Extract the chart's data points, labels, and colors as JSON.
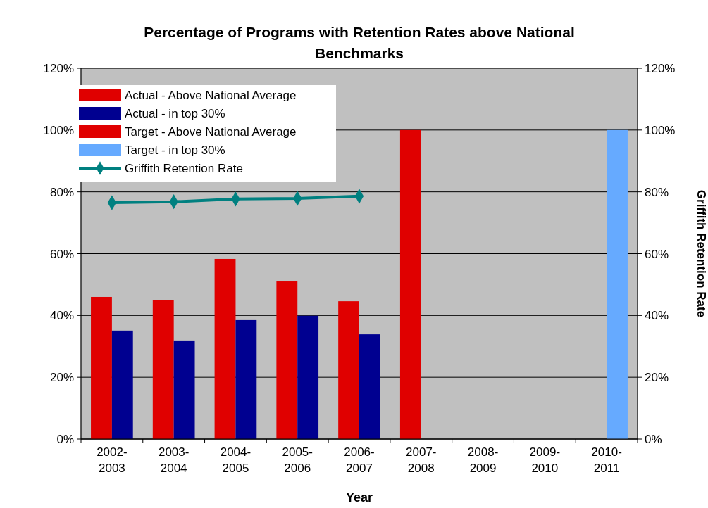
{
  "chart_data": {
    "type": "bar",
    "title": "Percentage of Programs with Retention Rates above National Benchmarks",
    "xlabel": "Year",
    "y2label": "Griffith Retention Rate",
    "categories": [
      "2002-2003",
      "2003-2004",
      "2004-2005",
      "2005-2006",
      "2006-2007",
      "2007-2008",
      "2008-2009",
      "2009-2010",
      "2010-2011"
    ],
    "series": [
      {
        "name": "Actual - Above National Average",
        "color": "#e00000",
        "values": [
          46,
          45,
          58.3,
          51,
          44.6,
          null,
          null,
          null,
          null
        ]
      },
      {
        "name": "Actual - in top 30%",
        "color": "#000090",
        "values": [
          35.1,
          31.9,
          38.5,
          39.9,
          33.9,
          null,
          null,
          null,
          null
        ]
      },
      {
        "name": "Target - Above National Average",
        "color": "#e00000",
        "values": [
          null,
          null,
          null,
          null,
          null,
          100,
          null,
          null,
          null
        ]
      },
      {
        "name": "Target - in top 30%",
        "color": "#66aaff",
        "values": [
          null,
          null,
          null,
          null,
          null,
          null,
          null,
          null,
          100
        ]
      },
      {
        "name": "Griffith Retention Rate",
        "type": "line",
        "color": "#008080",
        "marker": "diamond",
        "values": [
          76.5,
          76.8,
          77.7,
          77.9,
          78.6,
          null,
          null,
          null,
          null
        ]
      }
    ],
    "ylim": [
      0,
      120
    ],
    "yticks": [
      {
        "value": 0,
        "label": "0%"
      },
      {
        "value": 20,
        "label": "20%"
      },
      {
        "value": 40,
        "label": "40%"
      },
      {
        "value": 60,
        "label": "60%"
      },
      {
        "value": 80,
        "label": "80%"
      },
      {
        "value": 100,
        "label": "100%"
      },
      {
        "value": 120,
        "label": "120%"
      }
    ],
    "y2lim": [
      0,
      120
    ],
    "y2ticks": [
      {
        "value": 0,
        "label": "0%"
      },
      {
        "value": 20,
        "label": "20%"
      },
      {
        "value": 40,
        "label": "40%"
      },
      {
        "value": 60,
        "label": "60%"
      },
      {
        "value": 80,
        "label": "80%"
      },
      {
        "value": 100,
        "label": "100%"
      },
      {
        "value": 120,
        "label": "120%"
      }
    ],
    "grid": "y",
    "legend": "top left"
  }
}
